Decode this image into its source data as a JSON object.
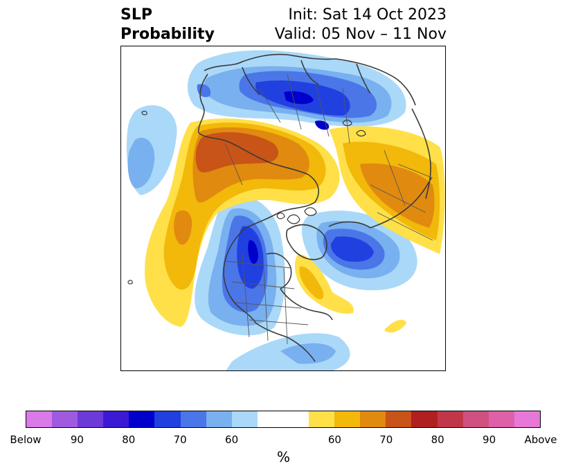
{
  "title": {
    "left_line1": "SLP",
    "left_line2": "Probability",
    "right_line1": "Init: Sat 14 Oct 2023",
    "right_line2": "Valid: 05 Nov – 11 Nov"
  },
  "colorbar": {
    "colors": [
      "#d97ae8",
      "#a05ae0",
      "#6c3ad8",
      "#3c1ad4",
      "#0000cc",
      "#2040e0",
      "#4a76e8",
      "#78b0f0",
      "#aad8f8",
      "#ffffff",
      "#ffffff",
      "#ffe048",
      "#f2b80a",
      "#e08a10",
      "#c85418",
      "#b02020",
      "#c03848",
      "#d05080",
      "#de60a8",
      "#e878d8"
    ],
    "labels": [
      "Below",
      "90",
      "80",
      "70",
      "60",
      "60",
      "70",
      "80",
      "90",
      "Above"
    ],
    "units": "%"
  },
  "legend_colors": {
    "blue_light": "#aad8f8",
    "blue_mid": "#78b0f0",
    "blue_med": "#4a76e8",
    "blue_strong": "#2040e0",
    "blue_deep": "#0000cc",
    "yellow_light": "#ffe048",
    "yellow": "#f2b80a",
    "orange": "#e08a10",
    "orange_dark": "#c85418"
  }
}
